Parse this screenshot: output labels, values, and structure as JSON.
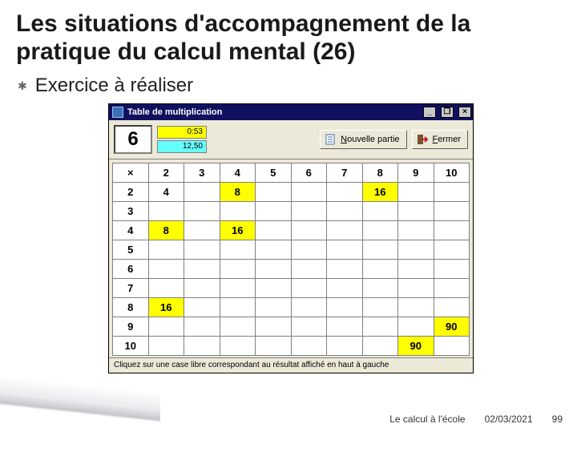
{
  "slide": {
    "title": "Les situations d'accompagnement de la pratique du calcul mental (26)",
    "title_color": "#1a1a1a",
    "title_fontsize": 30,
    "bullet_icon_glyph": "✱",
    "bullet_text": "Exercice à réaliser",
    "bullet_fontsize": 24
  },
  "window": {
    "title": "Table de multiplication",
    "titlebar_bg": "#101060",
    "titlebar_fg": "#ffffff",
    "chrome_bg": "#ece9d8",
    "minimize_glyph": "_",
    "restore_glyph": "❐",
    "close_glyph": "×"
  },
  "toolbar": {
    "big_number": "6",
    "status_top": {
      "value": "0:53",
      "bg": "#ffff00"
    },
    "status_bottom": {
      "value": "12,50",
      "bg": "#66ffff"
    },
    "new_game": {
      "label_pre": "",
      "underline": "N",
      "label_post": "ouvelle partie"
    },
    "close": {
      "label_pre": "",
      "underline": "F",
      "label_post": "ermer"
    }
  },
  "icons": {
    "new_game_color": "#4a6fa5",
    "close_door": "#7a5230",
    "close_arrow": "#c02020"
  },
  "grid": {
    "corner": "×",
    "col_headers": [
      "2",
      "3",
      "4",
      "5",
      "6",
      "7",
      "8",
      "9",
      "10"
    ],
    "row_headers": [
      "2",
      "3",
      "4",
      "5",
      "6",
      "7",
      "8",
      "9",
      "10"
    ],
    "highlight_color": "#ffff00",
    "cell_bg": "#ffffff",
    "border_color": "#808080",
    "rows": [
      [
        "4",
        "",
        "8",
        "",
        "",
        "",
        "16",
        "",
        ""
      ],
      [
        "",
        "",
        "",
        "",
        "",
        "",
        "",
        "",
        ""
      ],
      [
        "8",
        "",
        "16",
        "",
        "",
        "",
        "",
        "",
        ""
      ],
      [
        "",
        "",
        "",
        "",
        "",
        "",
        "",
        "",
        ""
      ],
      [
        "",
        "",
        "",
        "",
        "",
        "",
        "",
        "",
        ""
      ],
      [
        "",
        "",
        "",
        "",
        "",
        "",
        "",
        "",
        ""
      ],
      [
        "16",
        "",
        "",
        "",
        "",
        "",
        "",
        "",
        ""
      ],
      [
        "",
        "",
        "",
        "",
        "",
        "",
        "",
        "",
        "90"
      ],
      [
        "",
        "",
        "",
        "",
        "",
        "",
        "",
        "90",
        ""
      ]
    ],
    "highlights": [
      {
        "r": 0,
        "c": 2
      },
      {
        "r": 0,
        "c": 6
      },
      {
        "r": 2,
        "c": 0
      },
      {
        "r": 2,
        "c": 2
      },
      {
        "r": 6,
        "c": 0
      },
      {
        "r": 7,
        "c": 8
      },
      {
        "r": 8,
        "c": 7
      }
    ]
  },
  "hint": "Cliquez sur une case libre correspondant au résultat affiché en haut à gauche",
  "footer": {
    "left": "Le calcul à l'école",
    "date": "02/03/2021",
    "page": "99"
  }
}
